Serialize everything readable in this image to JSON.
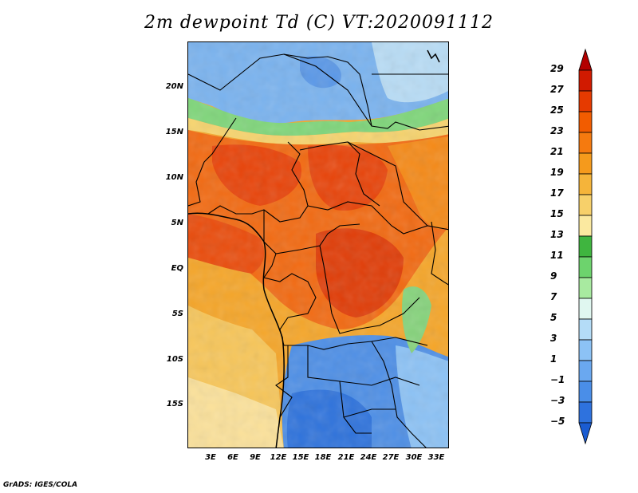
{
  "title": "2m dewpoint Td (C) VT:2020091112",
  "footer": "GrADS: IGES/COLA",
  "map": {
    "lat_labels": [
      "20N",
      "15N",
      "10N",
      "5N",
      "EQ",
      "5S",
      "10S",
      "15S"
    ],
    "lon_labels": [
      "3E",
      "6E",
      "9E",
      "12E",
      "15E",
      "18E",
      "21E",
      "24E",
      "27E",
      "30E",
      "33E"
    ]
  },
  "colorbar": {
    "labels": [
      "29",
      "27",
      "25",
      "23",
      "21",
      "19",
      "17",
      "15",
      "13",
      "11",
      "9",
      "7",
      "5",
      "3",
      "1",
      "−1",
      "−3",
      "−5"
    ],
    "colors": [
      "#b30000",
      "#d11a00",
      "#e63a00",
      "#f25c00",
      "#f57a0f",
      "#f59a1c",
      "#f5b43a",
      "#f7d06a",
      "#fbe9a0",
      "#3fb53f",
      "#6dd36d",
      "#a8eaa0",
      "#e0f7f0",
      "#b4dcf7",
      "#8cc2f5",
      "#6aa8f0",
      "#4a8ee8",
      "#2e72de",
      "#1a5cd2"
    ],
    "range": [
      -5,
      29
    ]
  }
}
